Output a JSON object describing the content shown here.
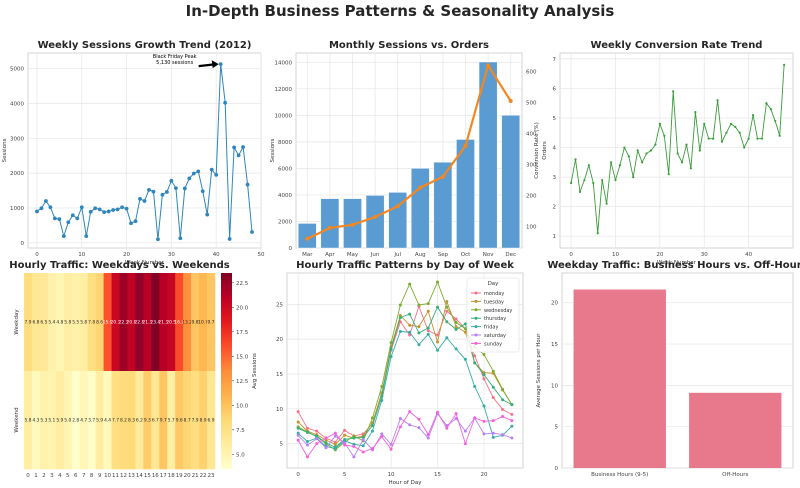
{
  "figure": {
    "title": "In-Depth Business Patterns & Seasonality Analysis"
  },
  "chart_data": [
    {
      "type": "line",
      "title": "Weekly Sessions Growth Trend (2012)",
      "xlabel": "Week Number",
      "ylabel": "Sessions",
      "xlim": [
        -2,
        50
      ],
      "ylim": [
        -150,
        5450
      ],
      "xticks": [
        0,
        10,
        20,
        30,
        40,
        50
      ],
      "yticks": [
        0,
        1000,
        2000,
        3000,
        4000,
        5000
      ],
      "grid": true,
      "color": "#2f86bc",
      "x": [
        0,
        1,
        2,
        3,
        4,
        5,
        6,
        7,
        8,
        9,
        10,
        11,
        12,
        13,
        14,
        15,
        16,
        17,
        18,
        19,
        20,
        21,
        22,
        23,
        24,
        25,
        26,
        27,
        28,
        29,
        30,
        31,
        32,
        33,
        34,
        35,
        36,
        37,
        38,
        39,
        40,
        41,
        42,
        43,
        44,
        45,
        46,
        47,
        48
      ],
      "y": [
        900,
        990,
        1200,
        1020,
        700,
        680,
        190,
        590,
        790,
        700,
        1020,
        190,
        890,
        990,
        960,
        880,
        900,
        940,
        960,
        1020,
        980,
        560,
        620,
        1260,
        1200,
        1520,
        1470,
        100,
        1380,
        1460,
        1780,
        1570,
        130,
        1560,
        1850,
        1990,
        2050,
        1480,
        810,
        2100,
        1950,
        5130,
        4020,
        110,
        2740,
        2510,
        2750,
        1670,
        310
      ],
      "annotation": {
        "text": "Black Friday Peak\n5,130 sessions",
        "x": 41,
        "y": 5130
      }
    },
    {
      "type": "bar+line",
      "title": "Monthly Sessions vs. Orders",
      "categories": [
        "Mar",
        "Apr",
        "May",
        "Jun",
        "Jul",
        "Aug",
        "Sep",
        "Oct",
        "Nov",
        "Dec"
      ],
      "ylabel": "Sessions",
      "y2label": "Orders",
      "ylim": [
        0,
        14700
      ],
      "y2lim": [
        30,
        660
      ],
      "yticks": [
        0,
        2000,
        4000,
        6000,
        8000,
        10000,
        12000,
        14000
      ],
      "y2ticks": [
        100,
        200,
        300,
        400,
        500,
        600
      ],
      "grid": true,
      "series": [
        {
          "kind": "bar",
          "axis": "left",
          "color": "#5a9bd1",
          "values": [
            1850,
            3720,
            3720,
            3960,
            4190,
            6000,
            6460,
            8180,
            14020,
            10000
          ]
        },
        {
          "kind": "line",
          "axis": "right",
          "color": "#f4871f",
          "values": [
            60,
            95,
            105,
            130,
            165,
            225,
            260,
            360,
            620,
            505
          ]
        }
      ]
    },
    {
      "type": "line",
      "title": "Weekly Conversion Rate Trend",
      "xlabel": "Week Number",
      "ylabel": "Conversion Rate (%)",
      "xlim": [
        -2.5,
        50
      ],
      "ylim": [
        0.6,
        7.2
      ],
      "xticks": [
        0,
        10,
        20,
        30,
        40
      ],
      "yticks": [
        1,
        2,
        3,
        4,
        5,
        6,
        7
      ],
      "grid": true,
      "color": "#3a9d3a",
      "x": [
        0,
        1,
        2,
        3,
        4,
        5,
        6,
        7,
        8,
        9,
        10,
        11,
        12,
        13,
        14,
        15,
        16,
        17,
        18,
        19,
        20,
        21,
        22,
        23,
        24,
        25,
        26,
        27,
        28,
        29,
        30,
        31,
        32,
        33,
        34,
        35,
        36,
        37,
        38,
        39,
        40,
        41,
        42,
        43,
        44,
        45,
        46,
        47,
        48
      ],
      "y": [
        2.8,
        3.6,
        2.5,
        2.9,
        3.4,
        2.8,
        1.1,
        2.9,
        2.1,
        3.5,
        2.9,
        3.4,
        4.0,
        3.7,
        3.0,
        3.9,
        3.5,
        3.8,
        3.9,
        4.1,
        4.8,
        4.4,
        3.1,
        5.9,
        3.8,
        3.5,
        4.1,
        3.3,
        5.2,
        3.9,
        4.8,
        4.3,
        4.3,
        5.6,
        4.2,
        4.5,
        4.8,
        4.7,
        4.5,
        4.0,
        4.3,
        5.1,
        4.3,
        4.3,
        5.5,
        5.3,
        4.9,
        4.4,
        6.8
      ]
    },
    {
      "type": "heatmap",
      "title": "Hourly Traffic: Weekdays vs. Weekends",
      "rows": [
        "Weekday",
        "Weekend"
      ],
      "columns": [
        "0",
        "1",
        "2",
        "3",
        "4",
        "5",
        "6",
        "7",
        "8",
        "9",
        "10",
        "11",
        "12",
        "13",
        "14",
        "15",
        "16",
        "17",
        "18",
        "19",
        "20",
        "21",
        "22",
        "23"
      ],
      "colorbar_label": "Avg Sessions",
      "vmin": 3.5,
      "vmax": 23.5,
      "colorbar_ticks": [
        "5.0",
        "7.5",
        "10.0",
        "12.5",
        "15.0",
        "17.5",
        "20.0",
        "22.5"
      ],
      "cell_labels": [
        [
          "7.9",
          "6.8",
          "6.5",
          "5.4",
          "4.8",
          "5.8",
          "5.5",
          "5.8",
          "7.8",
          "8.6",
          "15.9",
          "20.3",
          "22.3",
          "20.8",
          "22.8",
          "21.3",
          "23.4",
          "21.3",
          "20.5",
          "16.2",
          "13.2",
          "9.8",
          "10.7",
          "9.7"
        ],
        [
          "5.8",
          "4.3",
          "5.3",
          "5.1",
          "5.9",
          "5.0",
          "2.8",
          "4.7",
          "3.7",
          "5.9",
          "4.4",
          "7.7",
          "8.2",
          "8.3",
          "6.2",
          "9.3",
          "6.7",
          "9.7",
          "5.7",
          "9.6",
          "8.7",
          "7.9",
          "8.9",
          "6.9"
        ]
      ],
      "values": [
        [
          7.9,
          6.8,
          6.5,
          5.4,
          4.8,
          5.8,
          5.5,
          5.8,
          7.8,
          8.6,
          15.9,
          20.3,
          22.3,
          20.8,
          22.8,
          21.3,
          23.4,
          21.3,
          20.5,
          16.2,
          13.2,
          9.8,
          10.7,
          9.7
        ],
        [
          5.8,
          4.3,
          5.3,
          5.1,
          5.9,
          5.0,
          2.8,
          4.7,
          3.7,
          5.9,
          4.4,
          7.7,
          8.2,
          8.3,
          6.2,
          9.3,
          6.7,
          9.7,
          5.7,
          9.6,
          8.7,
          7.9,
          8.9,
          6.9
        ]
      ]
    },
    {
      "type": "line",
      "title": "Hourly Traffic Patterns by Day of Week",
      "xlabel": "Hour of Day",
      "xlim": [
        -1.2,
        24.2
      ],
      "ylim": [
        1.5,
        29.5
      ],
      "xticks": [
        0,
        5,
        10,
        15,
        20
      ],
      "yticks": [
        5,
        10,
        15,
        20,
        25
      ],
      "grid": true,
      "legend": {
        "title": "Day",
        "placement": "top-right"
      },
      "x": [
        0,
        1,
        2,
        3,
        4,
        5,
        6,
        7,
        8,
        9,
        10,
        11,
        12,
        13,
        14,
        15,
        16,
        17,
        18,
        19,
        20,
        21,
        22,
        23
      ],
      "series": [
        {
          "name": "monday",
          "color": "#f77189",
          "values": [
            9.6,
            7.2,
            6.8,
            5.8,
            5.2,
            6.9,
            6.1,
            6.4,
            7.9,
            12.1,
            18.4,
            22.5,
            20.6,
            24.7,
            21.2,
            20.6,
            24.0,
            22.9,
            21.5,
            17.6,
            14.3,
            11.6,
            9.9,
            9.2
          ]
        },
        {
          "name": "tuesday",
          "color": "#c3932e",
          "values": [
            8.1,
            6.8,
            6.3,
            5.5,
            4.9,
            6.2,
            5.8,
            6.1,
            8.0,
            12.3,
            18.9,
            23.4,
            22.0,
            21.8,
            24.0,
            19.6,
            25.4,
            21.8,
            21.0,
            16.6,
            15.2,
            15.1,
            12.7,
            10.6
          ]
        },
        {
          "name": "wednesday",
          "color": "#7bac31",
          "values": [
            7.4,
            6.7,
            6.0,
            5.0,
            4.1,
            5.2,
            6.1,
            5.4,
            8.7,
            13.2,
            19.5,
            24.9,
            27.9,
            24.9,
            25.1,
            28.2,
            24.6,
            22.4,
            21.5,
            18.9,
            17.8,
            15.4,
            12.8,
            10.6
          ]
        },
        {
          "name": "thursday",
          "color": "#33b07a",
          "values": [
            7.2,
            6.6,
            6.1,
            5.1,
            4.5,
            5.6,
            5.8,
            5.9,
            7.6,
            11.8,
            18.6,
            23.1,
            23.6,
            20.9,
            21.6,
            24.6,
            22.5,
            21.4,
            22.2,
            16.6,
            14.9,
            13.1,
            11.3,
            10.6
          ]
        },
        {
          "name": "friday",
          "color": "#36ada4",
          "values": [
            6.5,
            5.3,
            5.8,
            4.6,
            4.3,
            5.4,
            4.9,
            4.7,
            6.8,
            11.2,
            17.5,
            21.1,
            21.0,
            19.2,
            20.7,
            18.4,
            20.2,
            18.6,
            17.1,
            13.2,
            10.4,
            5.9,
            6.2,
            7.5
          ]
        },
        {
          "name": "saturday",
          "color": "#b782f7",
          "values": [
            6.2,
            4.8,
            5.7,
            4.4,
            6.1,
            5.1,
            3.1,
            5.6,
            4.1,
            6.4,
            4.9,
            8.6,
            7.7,
            7.3,
            5.8,
            9.3,
            7.6,
            8.6,
            6.8,
            8.7,
            6.4,
            6.5,
            6.3,
            5.8
          ]
        },
        {
          "name": "sunday",
          "color": "#f561dd",
          "values": [
            5.5,
            3.1,
            5.0,
            5.8,
            6.5,
            4.8,
            4.6,
            3.8,
            4.3,
            6.0,
            4.2,
            7.4,
            9.6,
            8.5,
            6.3,
            9.5,
            7.2,
            9.3,
            5.0,
            8.7,
            8.2,
            8.3,
            8.9,
            8.3
          ]
        }
      ]
    },
    {
      "type": "bar",
      "title": "Weekday Traffic: Business Hours vs. Off-Hours",
      "categories": [
        "Business Hours (9-5)",
        "Off-Hours"
      ],
      "values": [
        21.6,
        9.1
      ],
      "ylabel": "Average Sessions per Hour",
      "ylim": [
        0,
        23.6
      ],
      "yticks": [
        0,
        5,
        10,
        15,
        20
      ],
      "grid": true,
      "color": "#e8798d"
    }
  ]
}
